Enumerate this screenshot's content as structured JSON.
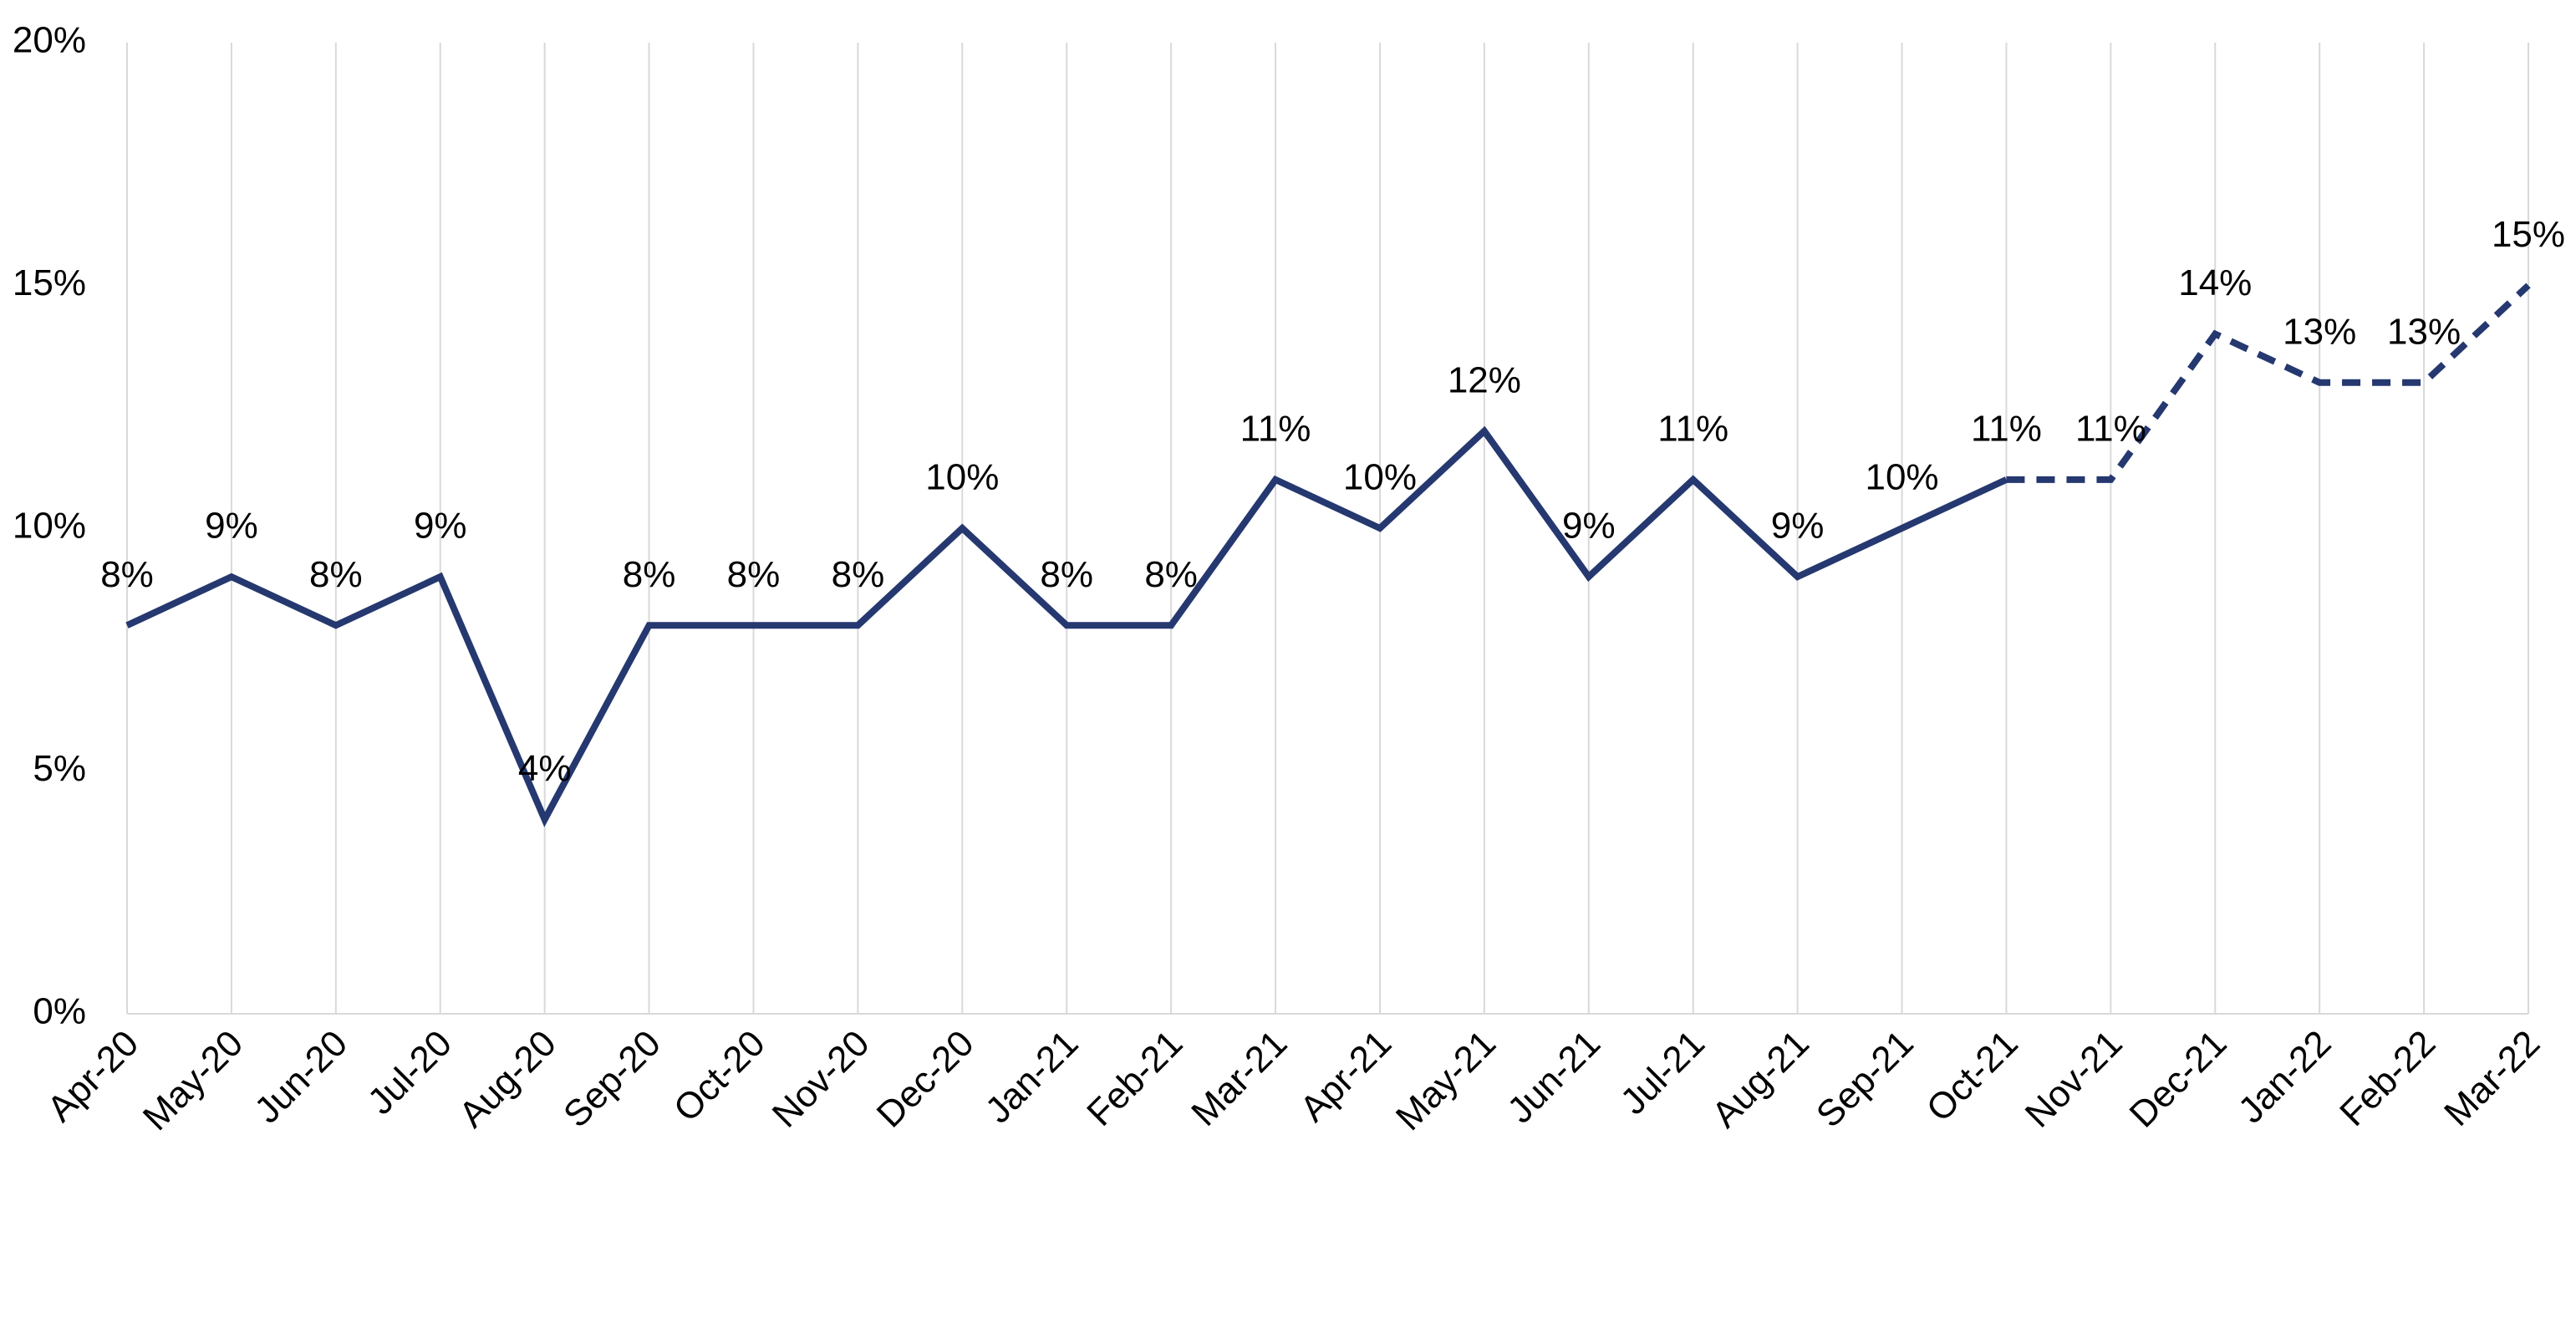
{
  "chart_data": {
    "type": "line",
    "categories": [
      "Apr-20",
      "May-20",
      "Jun-20",
      "Jul-20",
      "Aug-20",
      "Sep-20",
      "Oct-20",
      "Nov-20",
      "Dec-20",
      "Jan-21",
      "Feb-21",
      "Mar-21",
      "Apr-21",
      "May-21",
      "Jun-21",
      "Jul-21",
      "Aug-21",
      "Sep-21",
      "Oct-21",
      "Nov-21",
      "Dec-21",
      "Jan-22",
      "Feb-22",
      "Mar-22"
    ],
    "series": [
      {
        "color": "#253870",
        "line_style": "solid",
        "values": [
          8,
          9,
          8,
          9,
          4,
          8,
          8,
          8,
          10,
          8,
          8,
          11,
          10,
          12,
          9,
          11,
          9,
          10,
          11,
          null,
          null,
          null,
          null,
          null
        ],
        "value_labels": [
          "8%",
          "9%",
          "8%",
          "9%",
          "4%",
          "8%",
          "8%",
          "8%",
          "10%",
          "8%",
          "8%",
          "11%",
          "10%",
          "12%",
          "9%",
          "11%",
          "9%",
          "10%",
          "11%",
          null,
          null,
          null,
          null,
          null
        ]
      },
      {
        "color": "#253870",
        "line_style": "dashed",
        "values": [
          null,
          null,
          null,
          null,
          null,
          null,
          null,
          null,
          null,
          null,
          null,
          null,
          null,
          null,
          null,
          null,
          null,
          null,
          11,
          11,
          14,
          13,
          13,
          15
        ],
        "value_labels": [
          null,
          null,
          null,
          null,
          null,
          null,
          null,
          null,
          null,
          null,
          null,
          null,
          null,
          null,
          null,
          null,
          null,
          null,
          null,
          "11%",
          "14%",
          "13%",
          "13%",
          "15%"
        ]
      }
    ],
    "ylim": [
      0,
      20
    ],
    "yticks": [
      {
        "value": 0,
        "label": "0%"
      },
      {
        "value": 5,
        "label": "5%"
      },
      {
        "value": 10,
        "label": "10%"
      },
      {
        "value": 15,
        "label": "15%"
      },
      {
        "value": 20,
        "label": "20%"
      }
    ],
    "grid": "vertical"
  }
}
